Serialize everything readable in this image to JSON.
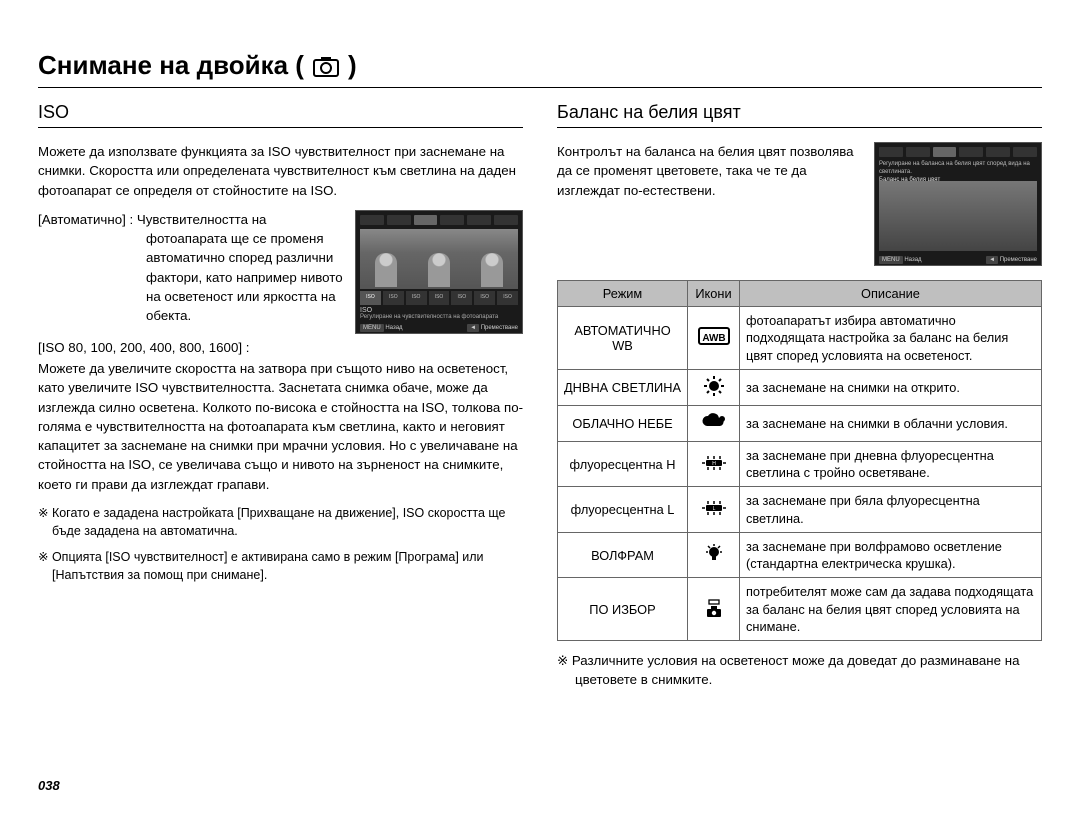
{
  "page_title": "Снимане на двойка (",
  "page_title_close": ")",
  "page_number": "038",
  "left": {
    "heading": "ISO",
    "intro": "Можете да използвате функцията за ISO чувствителност при заснемане на снимки. Скоростта или определената чувствителност към светлина на даден фотоапарат се определя от стойностите на ISO.",
    "auto_term": "[Автоматично] :",
    "auto_def_line1": "Чувствителността на",
    "auto_def_rest": "фотоапарата ще се променя автоматично според различни фактори, като например нивото на осветеност или яркостта на обекта.",
    "iso_list": "[ISO 80, 100, 200, 400, 800, 1600] :",
    "iso_body": "Можете да увеличите скоростта на затвора при същото ниво на осветеност, като увеличите ISO чувствителността. Заснетата снимка обаче, може да изглежда силно осветена. Колкото по-висока е стойността на ISO, толкова по-голяма е чувствителността на фотоапарата към светлина, както и неговият капацитет за заснемане на снимки при мрачни условия. Но с увеличаване на стойността на ISO, се увеличава също и нивото на зърненост на снимките, което ги прави да изглеждат грапави.",
    "note1": "※ Когато е зададена настройката [Прихващане на движение], ISO скоростта ще бъде зададена на автоматична.",
    "note2": "※ Опцията [ISO чувствителност] е активирана само в режим [Програма] или [Напътствия за помощ при снимане].",
    "screenshot": {
      "iso_chips": [
        "ISO",
        "ISO",
        "ISO",
        "ISO",
        "ISO",
        "ISO",
        "ISO"
      ],
      "label_line1": "ISO",
      "label_line2": "Регулиране на чувствителността на фотоапарата",
      "footer_left_btn": "MENU",
      "footer_left": "Назад",
      "footer_right_btn": "◄",
      "footer_right": "Преместване"
    }
  },
  "right": {
    "heading": "Баланс на белия цвят",
    "intro": "Контролът на баланса на белия цвят позволява да се променят цветовете, така че те да изглеждат по-естествени.",
    "screenshot": {
      "label1": "Регулиране на баланса на белия цвят според вида на светлината.",
      "label2": "Баланс на белия цвят",
      "footer_left_btn": "MENU",
      "footer_left": "Назад",
      "footer_right_btn": "◄",
      "footer_right": "Преместване"
    },
    "table": {
      "head_mode": "Режим",
      "head_icon": "Икони",
      "head_desc": "Описание",
      "rows": [
        {
          "mode": "АВТОМАТИЧНО WB",
          "icon": "awb",
          "desc": "фотоапаратът избира автоматично подходящата настройка за баланс на белия цвят според условията на осветеност."
        },
        {
          "mode": "ДНВНА СВЕТЛИНА",
          "icon": "sun",
          "desc": "за заснемане на снимки на открито."
        },
        {
          "mode": "ОБЛАЧНО НЕБЕ",
          "icon": "cloud",
          "desc": "за заснемане на снимки в облачни условия."
        },
        {
          "mode": "флуоресцентна H",
          "icon": "fluoH",
          "desc": "за заснемане при дневна флуоресцентна светлина с тройно осветяване."
        },
        {
          "mode": "флуоресцентна L",
          "icon": "fluoL",
          "desc": "за заснемане при бяла флуоресцентна светлина."
        },
        {
          "mode": "ВОЛФРАМ",
          "icon": "tungsten",
          "desc": "за заснемане при волфрамово осветление (стандартна електрическа крушка)."
        },
        {
          "mode": "ПО ИЗБОР",
          "icon": "custom",
          "desc": "потребителят може сам да задава подходящата за баланс на белия цвят според условията на снимане."
        }
      ]
    },
    "footnote": "※ Различните условия на осветеност може да доведат до разминаване на цветовете в снимките."
  }
}
